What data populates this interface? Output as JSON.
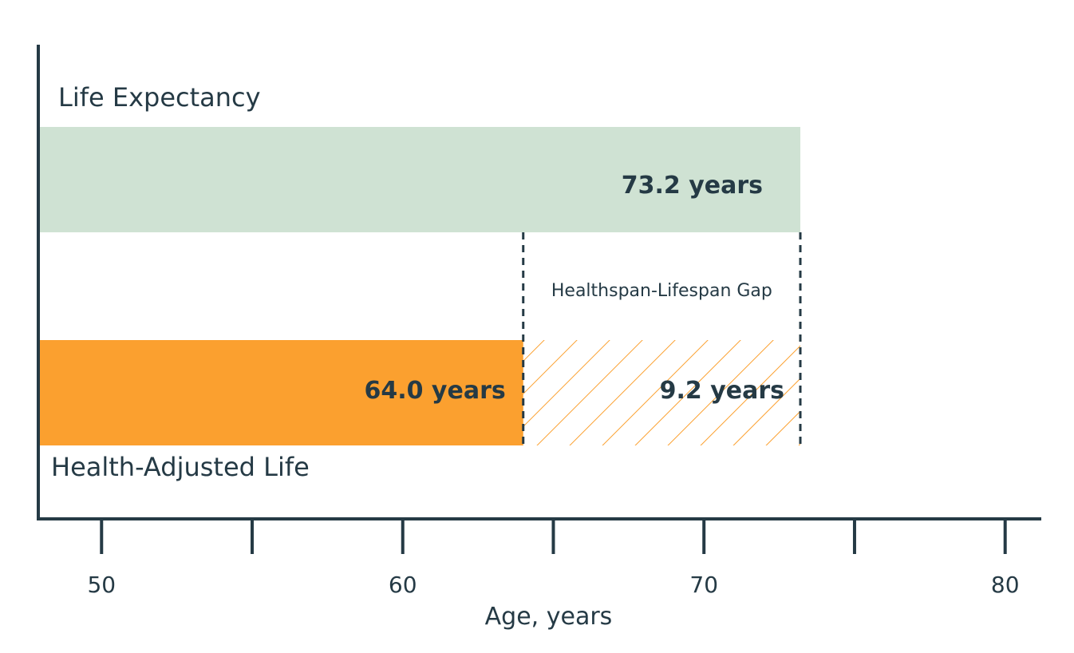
{
  "chart_data": {
    "type": "bar",
    "orientation": "horizontal",
    "title": "",
    "xlabel": "Age, years",
    "ylabel": "",
    "xlim": [
      47.9,
      81.2
    ],
    "x_ticks": [
      50,
      55,
      60,
      65,
      70,
      75,
      80
    ],
    "x_tick_labels": [
      "50",
      "",
      "60",
      "",
      "70",
      "",
      "80"
    ],
    "grid": false,
    "series": [
      {
        "name": "Life Expectancy",
        "value": 73.2,
        "label": "73.2 years",
        "color": "#cfe2d3"
      },
      {
        "name": "Health-Adjusted Life",
        "value": 64.0,
        "label": "64.0 years",
        "color": "#fba02f"
      }
    ],
    "gap": {
      "name": "Healthspan-Lifespan Gap",
      "start": 64.0,
      "end": 73.2,
      "value": 9.2,
      "label": "9.2 years",
      "pattern": "diagonal-hatch",
      "color": "#fba02f"
    },
    "colors": {
      "text": "#253a45",
      "axis": "#253a45",
      "hatch": "#fba02f"
    }
  }
}
